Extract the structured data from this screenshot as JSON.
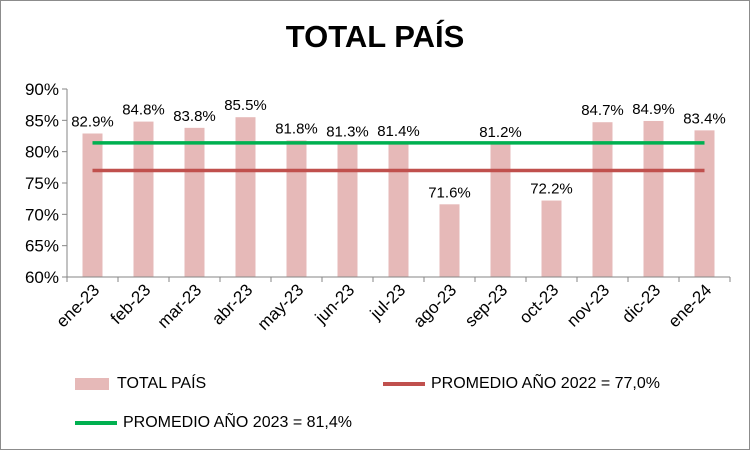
{
  "colors": {
    "bar": "#e6b9b8",
    "avg_2022": "#c0504d",
    "avg_2023": "#00b050",
    "axis": "#868686"
  },
  "chart_data": {
    "type": "bar",
    "title": "TOTAL PAÍS",
    "categories": [
      "ene-23",
      "feb-23",
      "mar-23",
      "abr-23",
      "may-23",
      "jun-23",
      "jul-23",
      "ago-23",
      "sep-23",
      "oct-23",
      "nov-23",
      "dic-23",
      "ene-24"
    ],
    "series": [
      {
        "name": "TOTAL PAÍS",
        "type": "bar",
        "values": [
          82.9,
          84.8,
          83.8,
          85.5,
          81.8,
          81.3,
          81.4,
          71.6,
          81.2,
          72.2,
          84.7,
          84.9,
          83.4
        ],
        "labels": [
          "82.9%",
          "84.8%",
          "83.8%",
          "85.5%",
          "81.8%",
          "81.3%",
          "81.4%",
          "71.6%",
          "81.2%",
          "72.2%",
          "84.7%",
          "84.9%",
          "83.4%"
        ]
      },
      {
        "name": "PROMEDIO AÑO 2022 = 77,0%",
        "type": "line",
        "value": 77.0
      },
      {
        "name": "PROMEDIO AÑO 2023 = 81,4%",
        "type": "line",
        "value": 81.4
      }
    ],
    "ylim": [
      60,
      90
    ],
    "yticks": [
      60,
      65,
      70,
      75,
      80,
      85,
      90
    ],
    "ytick_labels": [
      "60%",
      "65%",
      "70%",
      "75%",
      "80%",
      "85%",
      "90%"
    ],
    "grid": false,
    "legend_position": "bottom"
  }
}
